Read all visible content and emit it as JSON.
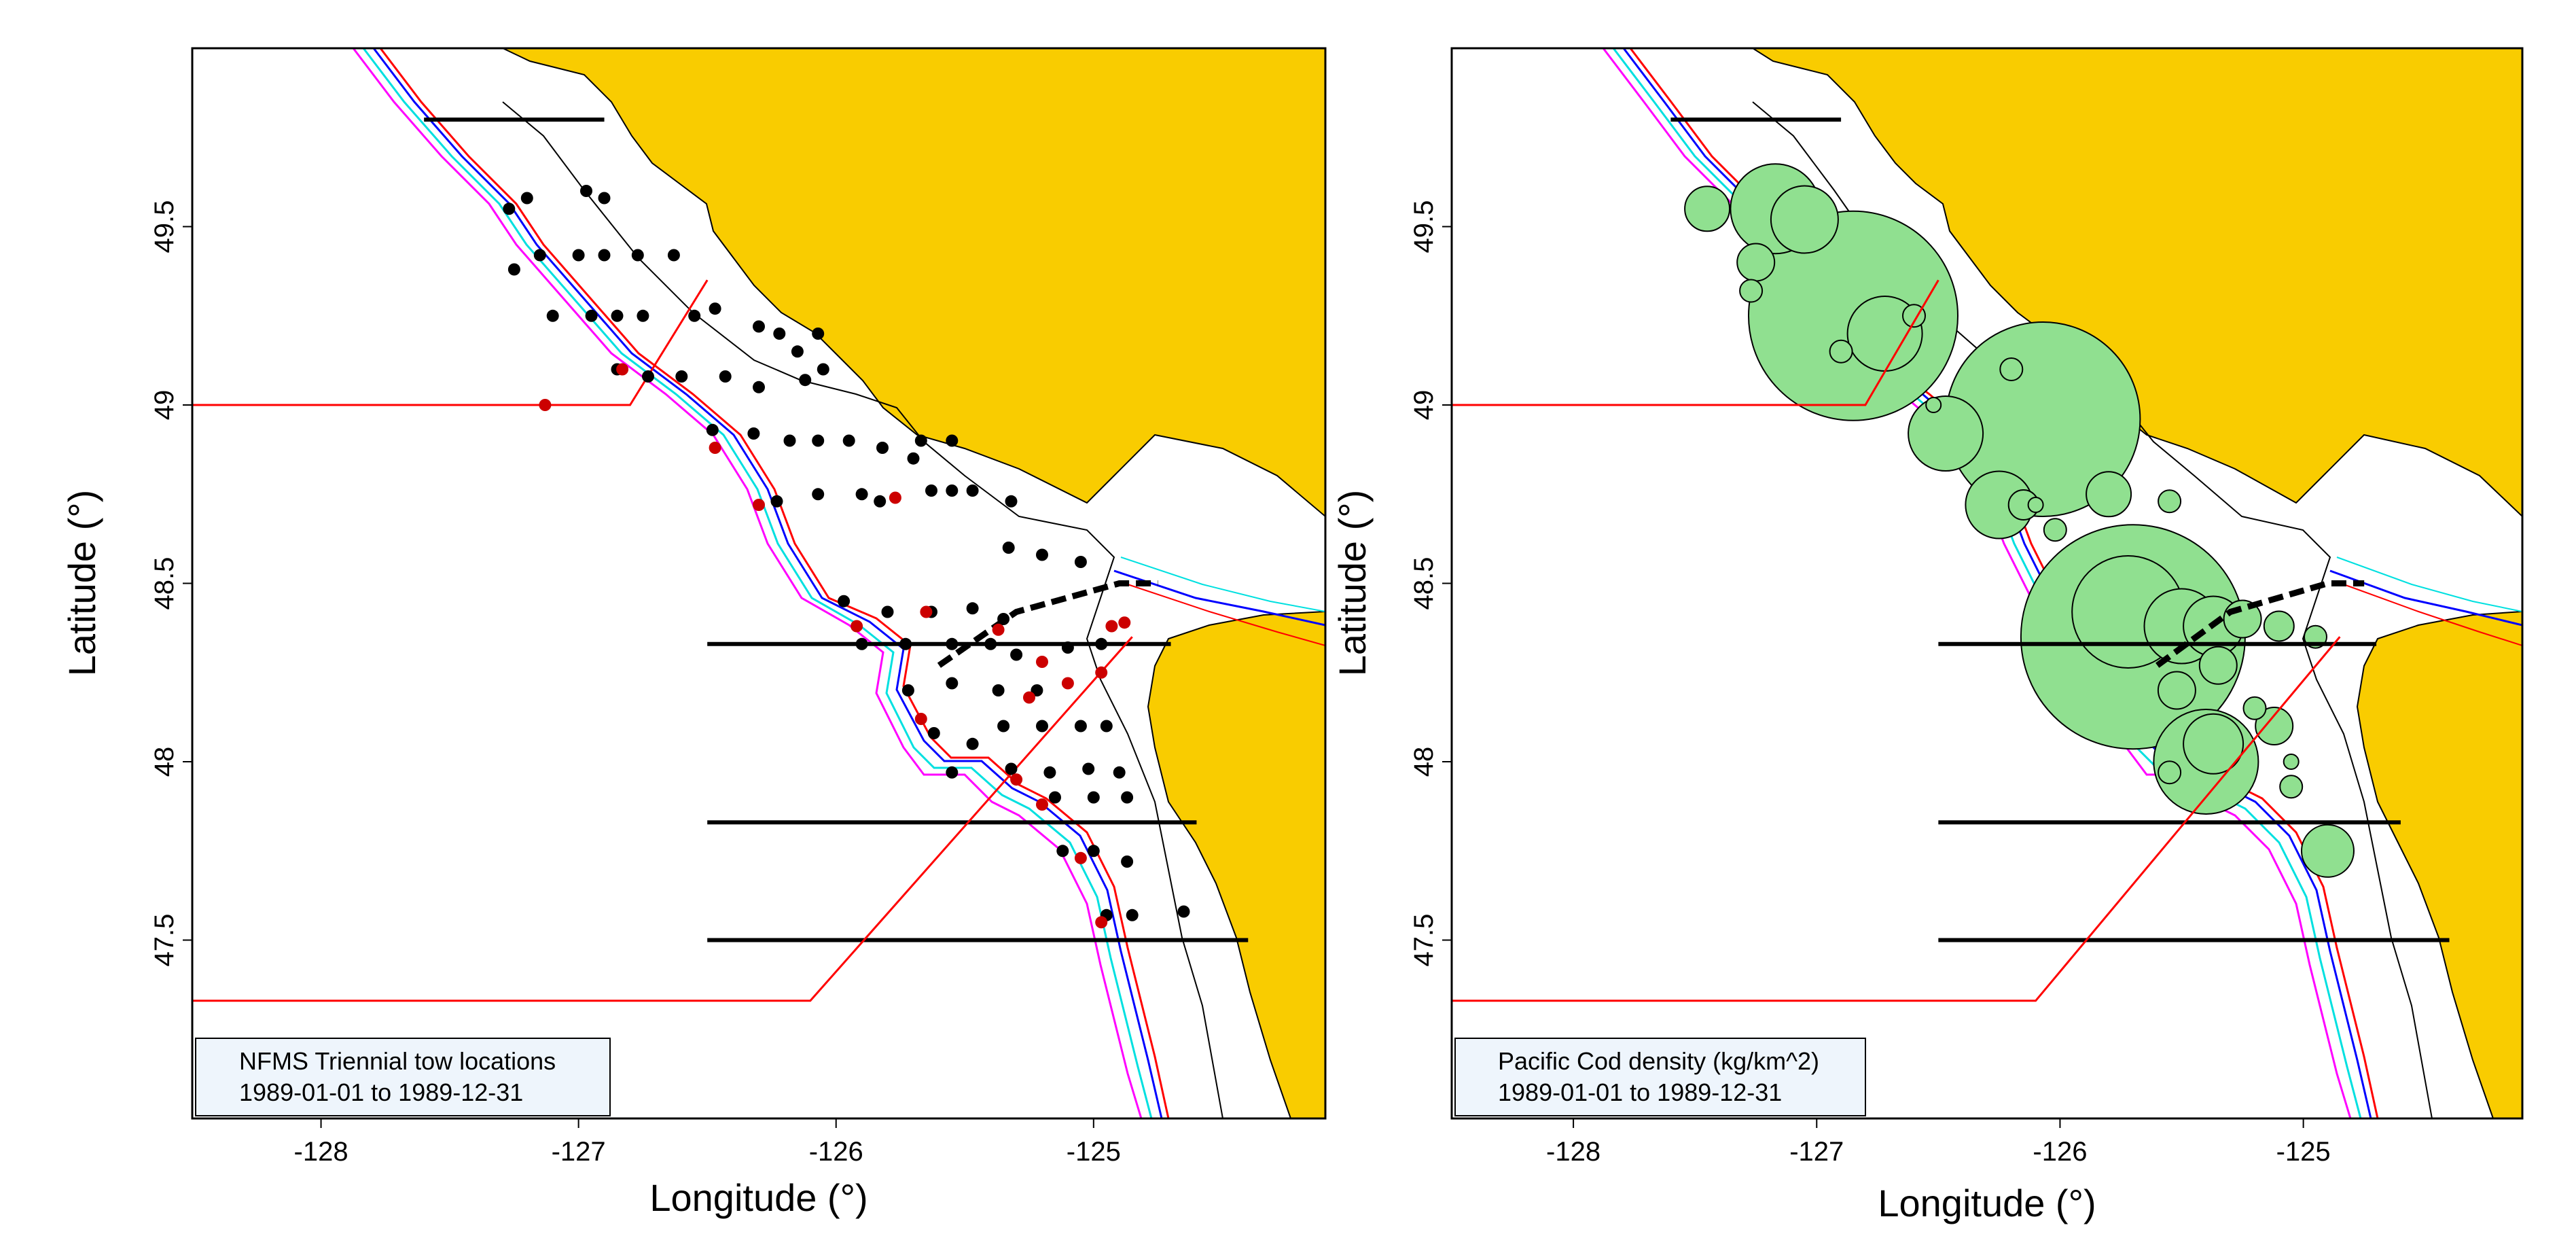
{
  "figure": {
    "panels": [
      {
        "id": "tows",
        "xlabel": "Longitude (°)",
        "ylabel": "Latitude (°)",
        "xticks": [
          -128,
          -127,
          -126,
          -125
        ],
        "yticks": [
          47.5,
          48,
          48.5,
          49,
          49.5
        ],
        "legend_line1": "NFMS Triennial tow locations",
        "legend_line2": "1989-01-01 to 1989-12-31"
      },
      {
        "id": "density",
        "xlabel": "Longitude (°)",
        "ylabel": "Latitude (°)",
        "xticks": [
          -128,
          -127,
          -126,
          -125
        ],
        "yticks": [
          47.5,
          48,
          48.5,
          49,
          49.5
        ],
        "legend_line1": "Pacific Cod density (kg/km^2)",
        "legend_line2": "1989-01-01 to 1989-12-31"
      }
    ],
    "colors": {
      "land": "#f9cc00",
      "bubble_fill": "#90e090",
      "red_line": "#ff0000",
      "blue_line": "#0000ff",
      "cyan_line": "#00e0e0",
      "magenta_line": "#ff00ff",
      "black_dot": "#000000",
      "red_dot": "#cc0000",
      "legend_bg": "#eef5fc"
    },
    "map_extent": {
      "lon": [
        -128.5,
        -124.1
      ],
      "lat": [
        47.0,
        50.0
      ]
    }
  },
  "chart_data": [
    {
      "type": "scatter",
      "title": "",
      "xlabel": "Longitude (°)",
      "ylabel": "Latitude (°)",
      "xlim": [
        -128.5,
        -124.1
      ],
      "ylim": [
        47.0,
        50.0
      ],
      "annotations": [
        "NFMS Triennial tow locations",
        "1989-01-01 to 1989-12-31"
      ],
      "boundary_lines": {
        "horizontal_black": [
          {
            "lat": 49.8,
            "lon": [
              -127.6,
              -126.9
            ]
          },
          {
            "lat": 48.33,
            "lon": [
              -126.5,
              -124.7
            ]
          },
          {
            "lat": 47.83,
            "lon": [
              -126.5,
              -124.6
            ]
          },
          {
            "lat": 47.5,
            "lon": [
              -126.5,
              -124.4
            ]
          }
        ],
        "red_line": [
          [
            -128.5,
            49.0
          ],
          [
            -126.8,
            49.0
          ],
          [
            -126.5,
            49.35
          ]
        ],
        "red_line_south": [
          [
            -128.5,
            47.33
          ],
          [
            -126.1,
            47.33
          ],
          [
            -124.85,
            48.35
          ]
        ],
        "dashed_black": [
          [
            -125.6,
            48.27
          ],
          [
            -125.3,
            48.42
          ],
          [
            -124.9,
            48.5
          ],
          [
            -124.75,
            48.5
          ]
        ]
      },
      "series": [
        {
          "marker": "black-dot",
          "points": [
            [
              -127.2,
              49.58
            ],
            [
              -127.27,
              49.55
            ],
            [
              -126.97,
              49.6
            ],
            [
              -126.9,
              49.58
            ],
            [
              -127.15,
              49.42
            ],
            [
              -127.0,
              49.42
            ],
            [
              -126.9,
              49.42
            ],
            [
              -126.77,
              49.42
            ],
            [
              -126.63,
              49.42
            ],
            [
              -127.25,
              49.38
            ],
            [
              -127.1,
              49.25
            ],
            [
              -126.95,
              49.25
            ],
            [
              -126.85,
              49.25
            ],
            [
              -126.75,
              49.25
            ],
            [
              -126.55,
              49.25
            ],
            [
              -126.47,
              49.27
            ],
            [
              -126.3,
              49.22
            ],
            [
              -126.22,
              49.2
            ],
            [
              -126.07,
              49.2
            ],
            [
              -126.15,
              49.15
            ],
            [
              -126.05,
              49.1
            ],
            [
              -126.12,
              49.07
            ],
            [
              -126.85,
              49.1
            ],
            [
              -126.73,
              49.08
            ],
            [
              -126.6,
              49.08
            ],
            [
              -126.43,
              49.08
            ],
            [
              -126.3,
              49.05
            ],
            [
              -126.48,
              48.93
            ],
            [
              -126.32,
              48.92
            ],
            [
              -126.18,
              48.9
            ],
            [
              -126.07,
              48.9
            ],
            [
              -125.95,
              48.9
            ],
            [
              -125.82,
              48.88
            ],
            [
              -125.67,
              48.9
            ],
            [
              -125.55,
              48.9
            ],
            [
              -125.7,
              48.85
            ],
            [
              -126.23,
              48.73
            ],
            [
              -126.07,
              48.75
            ],
            [
              -125.9,
              48.75
            ],
            [
              -125.83,
              48.73
            ],
            [
              -125.63,
              48.76
            ],
            [
              -125.55,
              48.76
            ],
            [
              -125.47,
              48.76
            ],
            [
              -125.32,
              48.73
            ],
            [
              -125.33,
              48.6
            ],
            [
              -125.2,
              48.58
            ],
            [
              -125.05,
              48.56
            ],
            [
              -125.97,
              48.45
            ],
            [
              -125.8,
              48.42
            ],
            [
              -125.63,
              48.42
            ],
            [
              -125.47,
              48.43
            ],
            [
              -125.35,
              48.4
            ],
            [
              -125.9,
              48.33
            ],
            [
              -125.73,
              48.33
            ],
            [
              -125.55,
              48.33
            ],
            [
              -125.4,
              48.33
            ],
            [
              -125.3,
              48.3
            ],
            [
              -125.1,
              48.32
            ],
            [
              -124.97,
              48.33
            ],
            [
              -125.72,
              48.2
            ],
            [
              -125.55,
              48.22
            ],
            [
              -125.37,
              48.2
            ],
            [
              -125.22,
              48.2
            ],
            [
              -125.62,
              48.08
            ],
            [
              -125.47,
              48.05
            ],
            [
              -125.35,
              48.1
            ],
            [
              -125.2,
              48.1
            ],
            [
              -125.05,
              48.1
            ],
            [
              -124.95,
              48.1
            ],
            [
              -125.55,
              47.97
            ],
            [
              -125.32,
              47.98
            ],
            [
              -125.17,
              47.97
            ],
            [
              -125.02,
              47.98
            ],
            [
              -124.9,
              47.97
            ],
            [
              -125.15,
              47.9
            ],
            [
              -125.0,
              47.9
            ],
            [
              -124.87,
              47.9
            ],
            [
              -125.12,
              47.75
            ],
            [
              -125.0,
              47.75
            ],
            [
              -124.87,
              47.72
            ],
            [
              -124.65,
              47.58
            ],
            [
              -124.95,
              47.57
            ],
            [
              -124.85,
              47.57
            ]
          ]
        },
        {
          "marker": "red-dot",
          "points": [
            [
              -127.13,
              49.0
            ],
            [
              -126.83,
              49.1
            ],
            [
              -126.47,
              48.88
            ],
            [
              -126.3,
              48.72
            ],
            [
              -125.77,
              48.74
            ],
            [
              -125.65,
              48.42
            ],
            [
              -125.92,
              48.38
            ],
            [
              -125.67,
              48.12
            ],
            [
              -125.37,
              48.37
            ],
            [
              -125.25,
              48.18
            ],
            [
              -125.2,
              48.28
            ],
            [
              -124.93,
              48.38
            ],
            [
              -124.88,
              48.39
            ],
            [
              -124.97,
              48.25
            ],
            [
              -125.1,
              48.22
            ],
            [
              -125.3,
              47.95
            ],
            [
              -125.2,
              47.88
            ],
            [
              -125.05,
              47.73
            ],
            [
              -124.97,
              47.55
            ]
          ]
        }
      ]
    },
    {
      "type": "scatter",
      "title": "",
      "xlabel": "Longitude (°)",
      "ylabel": "Latitude (°)",
      "xlim": [
        -128.5,
        -124.1
      ],
      "ylim": [
        47.0,
        50.0
      ],
      "annotations": [
        "Pacific Cod density (kg/km^2)",
        "1989-01-01 to 1989-12-31"
      ],
      "series": [
        {
          "marker": "bubble",
          "points": [
            [
              -127.45,
              49.55,
              0.6
            ],
            [
              -127.17,
              49.55,
              1.2
            ],
            [
              -127.05,
              49.52,
              0.9
            ],
            [
              -127.25,
              49.4,
              0.5
            ],
            [
              -127.27,
              49.32,
              0.3
            ],
            [
              -126.85,
              49.25,
              2.8
            ],
            [
              -126.72,
              49.2,
              1.0
            ],
            [
              -126.9,
              49.15,
              0.3
            ],
            [
              -126.6,
              49.25,
              0.3
            ],
            [
              -126.47,
              48.92,
              1.0
            ],
            [
              -126.52,
              49.0,
              0.2
            ],
            [
              -126.07,
              48.96,
              2.6
            ],
            [
              -126.2,
              49.1,
              0.3
            ],
            [
              -126.25,
              48.72,
              0.9
            ],
            [
              -126.15,
              48.72,
              0.4
            ],
            [
              -126.1,
              48.72,
              0.2
            ],
            [
              -125.8,
              48.75,
              0.6
            ],
            [
              -125.55,
              48.73,
              0.3
            ],
            [
              -126.02,
              48.65,
              0.3
            ],
            [
              -125.72,
              48.42,
              1.5
            ],
            [
              -125.7,
              48.35,
              3.0
            ],
            [
              -125.5,
              48.38,
              1.0
            ],
            [
              -125.37,
              48.38,
              0.8
            ],
            [
              -125.25,
              48.4,
              0.5
            ],
            [
              -125.1,
              48.38,
              0.4
            ],
            [
              -124.95,
              48.35,
              0.3
            ],
            [
              -125.35,
              48.27,
              0.5
            ],
            [
              -125.52,
              48.2,
              0.5
            ],
            [
              -125.37,
              48.05,
              0.8
            ],
            [
              -125.2,
              48.15,
              0.3
            ],
            [
              -125.4,
              48.0,
              1.4
            ],
            [
              -125.12,
              48.1,
              0.5
            ],
            [
              -125.55,
              47.97,
              0.3
            ],
            [
              -125.05,
              47.93,
              0.3
            ],
            [
              -125.05,
              48.0,
              0.2
            ],
            [
              -124.9,
              47.75,
              0.7
            ]
          ]
        }
      ]
    }
  ]
}
